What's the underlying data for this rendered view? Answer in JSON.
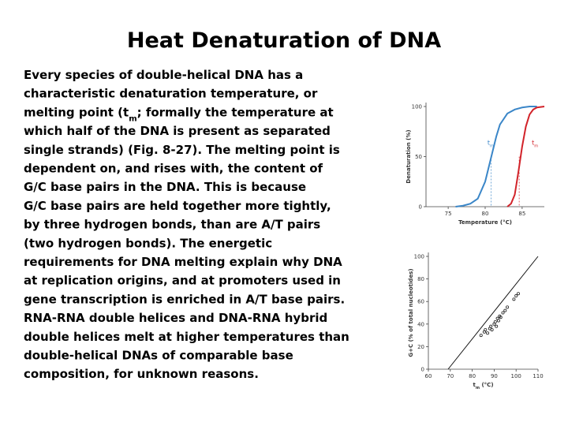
{
  "title": "Heat Denaturation of DNA",
  "body": [
    [
      "Every species of double-helical DNA has a"
    ],
    [
      "characteristic denaturation temperature, or"
    ],
    [
      "melting point (t",
      "m",
      "; formally the temperature at"
    ],
    [
      "which half of the DNA is present as separated"
    ],
    [
      "single strands) (Fig. 8-27). The melting point is"
    ],
    [
      "dependent on, and rises with, the content of"
    ],
    [
      "G/C base pairs in the DNA. This is because"
    ],
    [
      "G/C base pairs are held together more tightly,"
    ],
    [
      "by three hydrogen bonds, than are A/T pairs"
    ],
    [
      "(two hydrogen bonds). The energetic"
    ],
    [
      "requirements for DNA melting explain why DNA"
    ],
    [
      "at replication origins, and at promoters used in"
    ],
    [
      "gene transcription is enriched in A/T base pairs."
    ],
    [
      "RNA-RNA double helices and DNA-RNA hybrid"
    ],
    [
      "double helices melt at higher temperatures than"
    ],
    [
      "double-helical DNAs of comparable base"
    ],
    [
      "composition, for unknown reasons."
    ]
  ],
  "chart_data": [
    {
      "type": "line",
      "x_label": [
        "Temperature (°C)"
      ],
      "y_label": [
        "Denaturation (%)"
      ],
      "xlim": [
        72,
        88
      ],
      "xticks": [
        75,
        80,
        85
      ],
      "ylim": [
        0,
        100
      ],
      "yticks": [
        0,
        50,
        100
      ],
      "series": [
        {
          "color": "#3a86c8",
          "x": [
            76,
            77,
            78,
            79,
            80,
            80.5,
            81,
            81.5,
            82,
            83,
            84,
            85,
            86,
            87
          ],
          "values": [
            0,
            1,
            3,
            8,
            25,
            40,
            55,
            70,
            82,
            93,
            97,
            99,
            100,
            100
          ]
        },
        {
          "color": "#d2232a",
          "x": [
            83,
            83.5,
            84,
            84.5,
            85,
            85.5,
            86,
            86.5,
            87,
            88
          ],
          "values": [
            0,
            3,
            12,
            35,
            60,
            80,
            92,
            97,
            99,
            100
          ]
        }
      ],
      "tm_lines": [
        80.8,
        84.6
      ],
      "annotations": [
        {
          "text": [
            "t",
            "m"
          ],
          "x": 80.3,
          "y": 62,
          "color": "#3a86c8"
        },
        {
          "text": [
            "t",
            "m"
          ],
          "x": 86.3,
          "y": 62,
          "color": "#d2232a"
        }
      ]
    },
    {
      "type": "scatter",
      "x_label": [
        "t",
        "m",
        " (°C)"
      ],
      "y_label": [
        "G+C (% of total nucleotides)"
      ],
      "xlim": [
        60,
        110
      ],
      "xticks": [
        60,
        70,
        80,
        90,
        100,
        110
      ],
      "ylim": [
        0,
        100
      ],
      "yticks": [
        0,
        20,
        40,
        60,
        80,
        100
      ],
      "color": "#222222",
      "x": [
        84,
        85.5,
        86,
        87,
        88,
        88.5,
        89,
        90,
        90.5,
        91,
        91.5,
        92,
        92.5,
        93,
        94,
        95,
        96,
        99,
        100,
        101
      ],
      "values": [
        30,
        33,
        35,
        32,
        36,
        38,
        35,
        40,
        42,
        38,
        45,
        43,
        47,
        46,
        50,
        52,
        55,
        62,
        65,
        67
      ],
      "fit_line": {
        "x": [
          69,
          110
        ],
        "values": [
          0,
          100
        ]
      }
    }
  ]
}
